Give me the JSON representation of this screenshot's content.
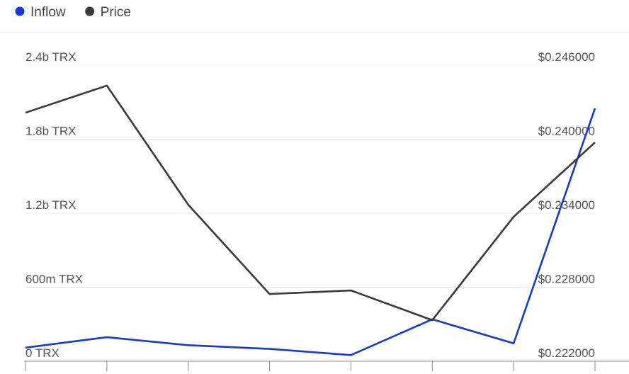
{
  "chart_data": {
    "type": "line",
    "categories": [
      null,
      null,
      null,
      null,
      null,
      null,
      null,
      null
    ],
    "series": [
      {
        "name": "Inflow",
        "color": "#1738d6",
        "values": [
          110000000,
          195000000,
          130000000,
          100000000,
          50000000,
          340000000,
          145000000,
          2050000000
        ]
      },
      {
        "name": "Price",
        "color": "#3a3a3a",
        "axis": "y2",
        "values": [
          0.24215,
          0.24434,
          0.23469,
          0.22745,
          0.22774,
          0.22533,
          0.23371,
          0.23974
        ]
      }
    ],
    "ylim": [
      0,
      2400000000
    ],
    "yticks": [
      {
        "value": 0,
        "label": "0 TRX"
      },
      {
        "value": 600000000,
        "label": "600m TRX"
      },
      {
        "value": 1200000000,
        "label": "1.2b TRX"
      },
      {
        "value": 1800000000,
        "label": "1.8b TRX"
      },
      {
        "value": 2400000000,
        "label": "2.4b TRX"
      }
    ],
    "y2lim": [
      0.222,
      0.246
    ],
    "y2ticks": [
      {
        "value": 0.222,
        "label": "$0.222000"
      },
      {
        "value": 0.228,
        "label": "$0.228000"
      },
      {
        "value": 0.234,
        "label": "$0.234000"
      },
      {
        "value": 0.24,
        "label": "$0.240000"
      },
      {
        "value": 0.246,
        "label": "$0.246000"
      }
    ],
    "grid": true,
    "legend": "top-left"
  }
}
